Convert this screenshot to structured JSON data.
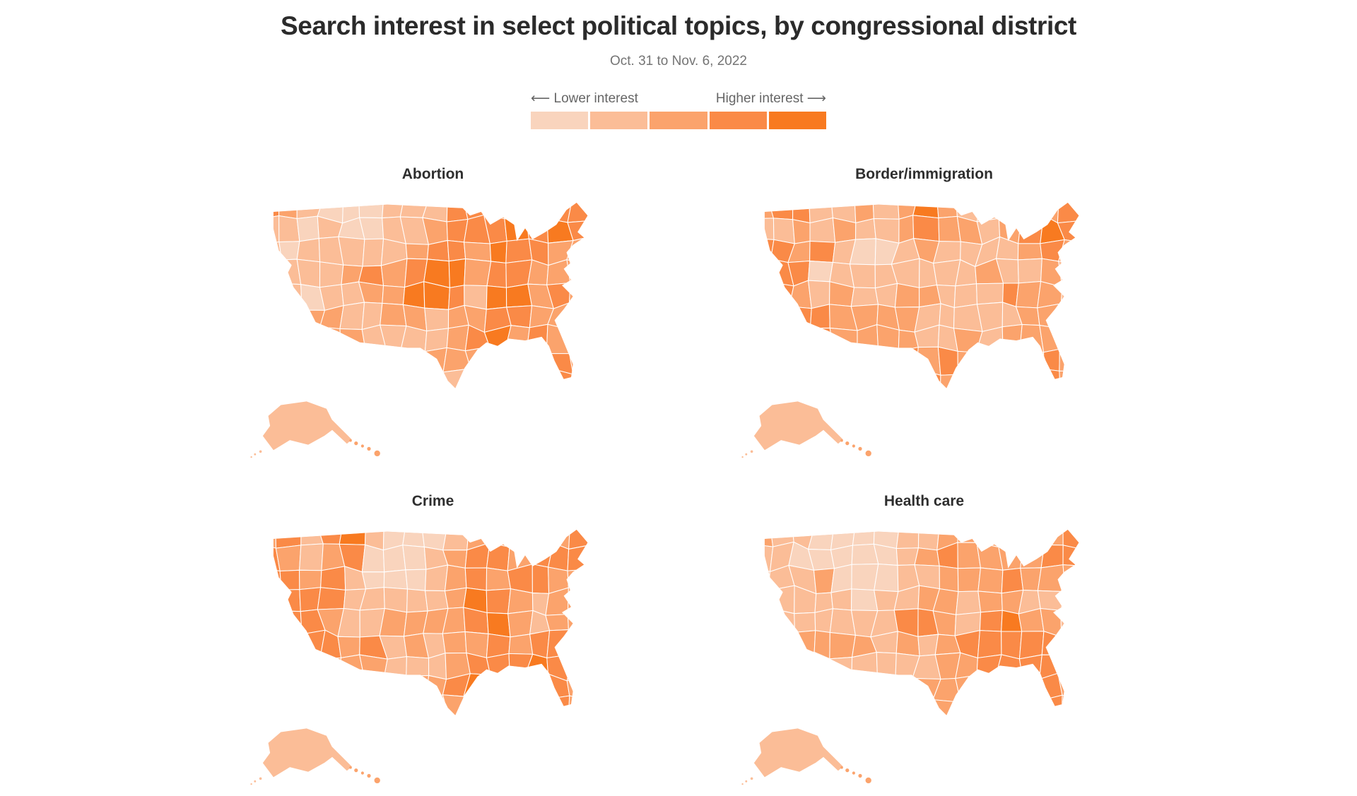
{
  "header": {
    "title": "Search interest in select political topics, by congressional district",
    "subtitle": "Oct. 31 to Nov. 6, 2022"
  },
  "legend": {
    "lower_label": "⟵ Lower interest",
    "higher_label": "Higher interest ⟶",
    "colors": [
      "#F9D4BD",
      "#FBBD97",
      "#FBA36C",
      "#FA8A47",
      "#F87A20"
    ]
  },
  "chart_data": {
    "type": "heatmap",
    "subtype": "choropleth-small-multiples",
    "title": "Search interest in select political topics, by congressional district",
    "subtitle": "Oct. 31 to Nov. 6, 2022",
    "legend": {
      "low": "Lower interest",
      "high": "Higher interest",
      "bins": 5
    },
    "value_scale": "search interest quintile, 1 = lowest, 5 = highest",
    "grid_columns": 16,
    "grid_rows": 9,
    "grid_note": "coarse west-to-east (columns) and north-to-south (rows) intensity raster of each choropleth",
    "maps": [
      {
        "title": "Abortion",
        "alaska": 2,
        "hawaii": 3,
        "grid": [
          "4321112224455444",
          "2212112234445454",
          "2122222344354433",
          "1222343455344333",
          "2212233554255343",
          "2233223323344333",
          "1233322223453433",
          "2222222233333443",
          "2222222232223343"
        ]
      },
      {
        "title": "Border/immigration",
        "alaska": 2,
        "hawaii": 3,
        "grid": [
          "3442232353223334",
          "2232322343323454",
          "4434211232222343",
          "3441222222232232",
          "4432322332224332",
          "4444333322222332",
          "3444333322323332",
          "2223334434322343",
          "2222234543223343"
        ]
      },
      {
        "title": "Crime",
        "alaska": 2,
        "hawaii": 3,
        "grid": [
          "3424521112343334",
          "4323411123443444",
          "4434211123434433",
          "3444222223543233",
          "4443223333453233",
          "3444342323343443",
          "2343332223444543",
          "2222233334533343",
          "2222233433333443"
        ]
      },
      {
        "title": "Health care",
        "alaska": 2,
        "hawaii": 3,
        "grid": [
          "3221111223333334",
          "2211111234333344",
          "2223111223334333",
          "1222212233233222",
          "2222222443245332",
          "2233332323444443",
          "2233222223344443",
          "2222223333334443",
          "2222234533333443"
        ]
      }
    ]
  }
}
